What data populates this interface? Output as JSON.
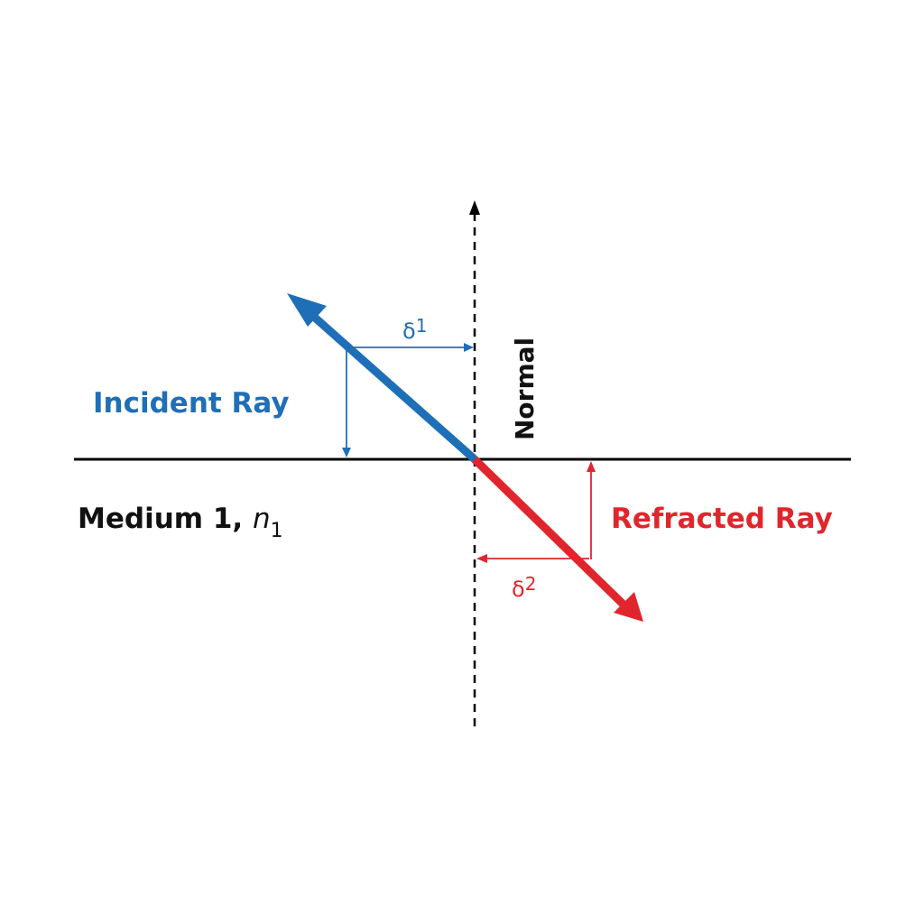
{
  "labels": {
    "incident": "Incident Ray",
    "refracted": "Refracted Ray",
    "normal": "Normal",
    "medium_main": "Medium 1, ",
    "medium_symbol": "n",
    "medium_subscript": "1",
    "angle1_symbol": "δ",
    "angle1_index": "1",
    "angle2_symbol": "δ",
    "angle2_index": "2"
  },
  "colors": {
    "incident": "#1f6fb8",
    "refracted": "#e0262c",
    "text_dark": "#111111",
    "line": "#000000",
    "background": "#ffffff"
  }
}
